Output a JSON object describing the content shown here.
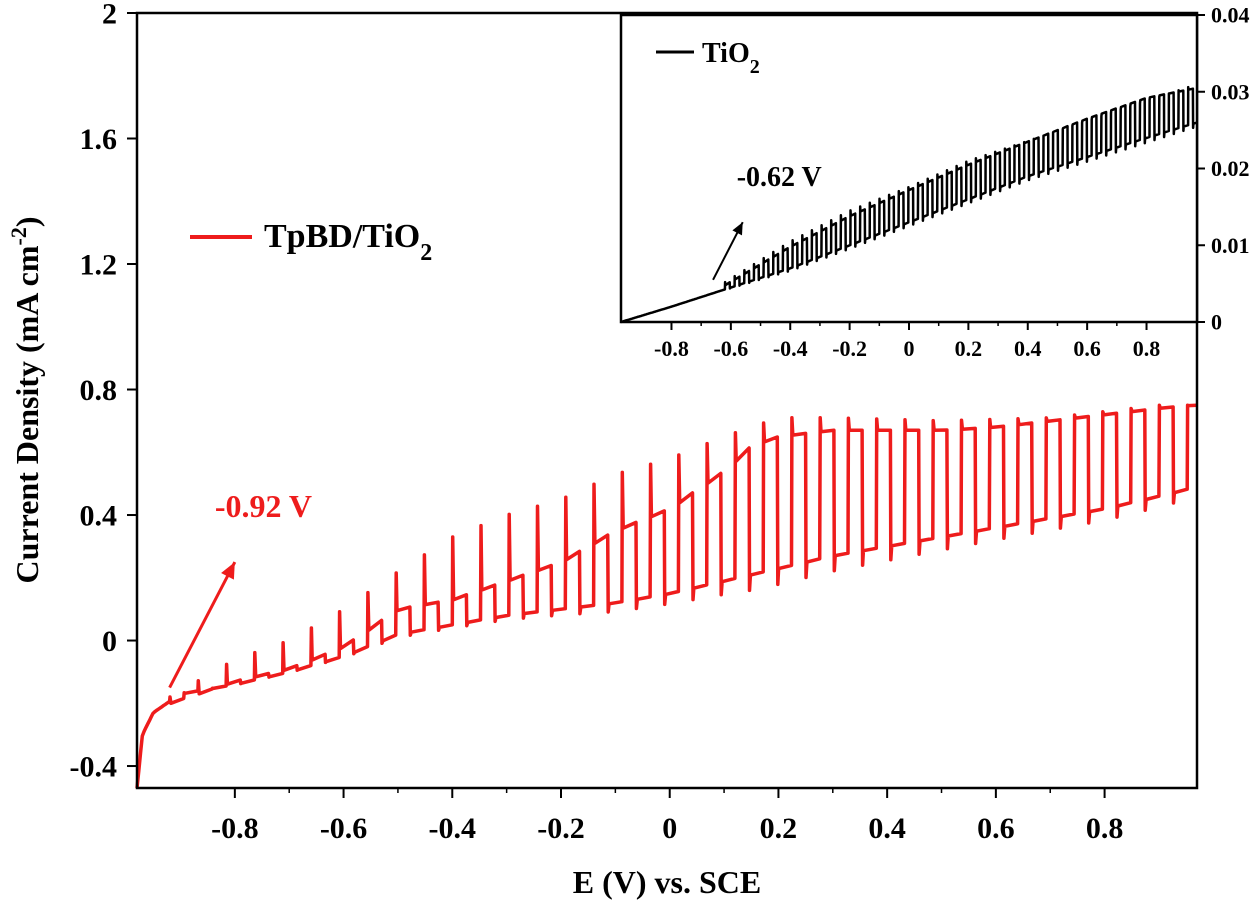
{
  "chart_data": [
    {
      "type": "line",
      "title": "",
      "xlabel": "E (V) vs. SCE",
      "ylabel": "Current Density (mA cm",
      "ylabel_sup": "-2",
      "ylabel_end": ")",
      "xlim": [
        -0.98,
        0.97
      ],
      "ylim": [
        -0.47,
        2.0
      ],
      "xticks": [
        -0.8,
        -0.6,
        -0.4,
        -0.2,
        0,
        0.2,
        0.4,
        0.6,
        0.8
      ],
      "xtick_labels": [
        "-0.8",
        "-0.6",
        "-0.4",
        "-0.2",
        "0",
        "0.2",
        "0.4",
        "0.6",
        "0.8"
      ],
      "yticks": [
        -0.4,
        0,
        0.4,
        0.8,
        1.2,
        1.6,
        2.0
      ],
      "ytick_labels": [
        "-0.4",
        "0",
        "0.4",
        "0.8",
        "1.2",
        "1.6",
        "2"
      ],
      "legend_position": "left-middle",
      "colors": {
        "series": "#ee1c1c",
        "axis": "#000000"
      },
      "series": [
        {
          "name": "TpBD/TiO",
          "name_sub": "2",
          "chopped": true,
          "chop_start_x": -0.92,
          "chop_period": 0.052,
          "dark_baseline": [
            [
              -0.98,
              -0.47
            ],
            [
              -0.97,
              -0.3
            ],
            [
              -0.95,
              -0.23
            ],
            [
              -0.9,
              -0.17
            ],
            [
              -0.8,
              -0.14
            ],
            [
              -0.7,
              -0.1
            ],
            [
              -0.6,
              -0.05
            ],
            [
              -0.5,
              0.02
            ],
            [
              -0.4,
              0.05
            ],
            [
              -0.3,
              0.08
            ],
            [
              -0.2,
              0.1
            ],
            [
              -0.1,
              0.12
            ],
            [
              0,
              0.15
            ],
            [
              0.1,
              0.19
            ],
            [
              0.2,
              0.23
            ],
            [
              0.3,
              0.27
            ],
            [
              0.4,
              0.3
            ],
            [
              0.5,
              0.33
            ],
            [
              0.6,
              0.36
            ],
            [
              0.7,
              0.39
            ],
            [
              0.8,
              0.42
            ],
            [
              0.9,
              0.46
            ],
            [
              0.97,
              0.49
            ]
          ],
          "light_current": [
            [
              -0.92,
              -0.2
            ],
            [
              -0.8,
              -0.13
            ],
            [
              -0.7,
              -0.09
            ],
            [
              -0.6,
              -0.02
            ],
            [
              -0.5,
              0.1
            ],
            [
              -0.4,
              0.13
            ],
            [
              -0.3,
              0.19
            ],
            [
              -0.2,
              0.25
            ],
            [
              -0.1,
              0.35
            ],
            [
              0,
              0.42
            ],
            [
              0.1,
              0.54
            ],
            [
              0.15,
              0.62
            ],
            [
              0.2,
              0.65
            ],
            [
              0.3,
              0.67
            ],
            [
              0.4,
              0.67
            ],
            [
              0.5,
              0.67
            ],
            [
              0.6,
              0.68
            ],
            [
              0.7,
              0.7
            ],
            [
              0.8,
              0.72
            ],
            [
              0.9,
              0.74
            ],
            [
              0.96,
              0.75
            ]
          ],
          "peak_current": [
            [
              -0.92,
              -0.18
            ],
            [
              -0.8,
              -0.06
            ],
            [
              -0.7,
              0.0
            ],
            [
              -0.6,
              0.1
            ],
            [
              -0.5,
              0.22
            ],
            [
              -0.4,
              0.33
            ],
            [
              -0.3,
              0.4
            ],
            [
              -0.2,
              0.45
            ],
            [
              -0.1,
              0.53
            ],
            [
              0,
              0.58
            ],
            [
              0.1,
              0.65
            ],
            [
              0.2,
              0.71
            ],
            [
              0.3,
              0.71
            ],
            [
              0.5,
              0.7
            ],
            [
              0.7,
              0.71
            ],
            [
              0.9,
              0.75
            ]
          ]
        }
      ],
      "annotations": [
        {
          "text": "-0.92 V",
          "arrow_from": [
            -0.92,
            -0.15
          ],
          "arrow_to": [
            -0.8,
            0.25
          ]
        }
      ]
    },
    {
      "type": "line",
      "title": "",
      "inset": true,
      "xlabel": "",
      "ylabel": "",
      "xlim": [
        -0.97,
        0.97
      ],
      "ylim": [
        0,
        0.04
      ],
      "xticks": [
        -0.8,
        -0.6,
        -0.4,
        -0.2,
        0,
        0.2,
        0.4,
        0.6,
        0.8
      ],
      "xtick_labels": [
        "-0.8",
        "-0.6",
        "-0.4",
        "-0.2",
        "0",
        "0.2",
        "0.4",
        "0.6",
        "0.8"
      ],
      "yticks": [
        0,
        0.01,
        0.02,
        0.03,
        0.04
      ],
      "ytick_labels": [
        "0",
        "0.01",
        "0.02",
        "0.03",
        "0.04"
      ],
      "legend_position": "top-left",
      "colors": {
        "series": "#000000",
        "axis": "#000000"
      },
      "series": [
        {
          "name": "TiO",
          "name_sub": "2",
          "chopped": true,
          "chop_start_x": -0.62,
          "chop_period": 0.0325,
          "dark_baseline": [
            [
              -0.97,
              0.0
            ],
            [
              -0.8,
              0.002
            ],
            [
              -0.6,
              0.0045
            ],
            [
              -0.4,
              0.007
            ],
            [
              -0.2,
              0.01
            ],
            [
              0,
              0.013
            ],
            [
              0.2,
              0.016
            ],
            [
              0.4,
              0.019
            ],
            [
              0.6,
              0.0215
            ],
            [
              0.8,
              0.024
            ],
            [
              0.97,
              0.026
            ]
          ],
          "light_current": [
            [
              -0.62,
              0.0048
            ],
            [
              -0.4,
              0.0098
            ],
            [
              -0.2,
              0.0138
            ],
            [
              0,
              0.0172
            ],
            [
              0.2,
              0.0205
            ],
            [
              0.4,
              0.0235
            ],
            [
              0.6,
              0.0265
            ],
            [
              0.8,
              0.0292
            ],
            [
              0.97,
              0.0305
            ]
          ],
          "peak_current": [
            [
              -0.62,
              0.0052
            ],
            [
              -0.4,
              0.0105
            ],
            [
              -0.2,
              0.0145
            ],
            [
              0,
              0.0176
            ],
            [
              0.2,
              0.021
            ],
            [
              0.97,
              0.031
            ]
          ]
        }
      ],
      "annotations": [
        {
          "text": "-0.62 V",
          "arrow_from": [
            -0.66,
            0.0055
          ],
          "arrow_to": [
            -0.56,
            0.013
          ]
        }
      ]
    }
  ]
}
